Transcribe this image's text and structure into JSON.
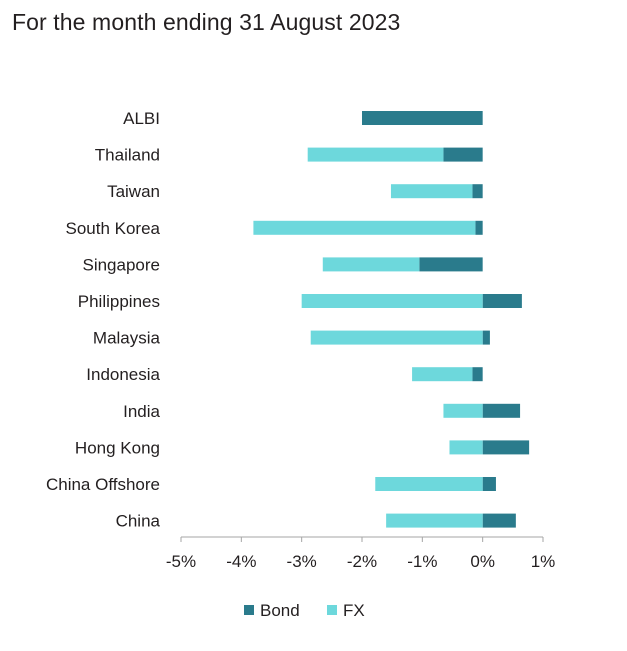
{
  "title": "For the month ending 31 August 2023",
  "chart_data": {
    "type": "bar",
    "orientation": "horizontal",
    "stacked": "diverging",
    "categories": [
      "ALBI",
      "Thailand",
      "Taiwan",
      "South Korea",
      "Singapore",
      "Philippines",
      "Malaysia",
      "Indonesia",
      "India",
      "Hong Kong",
      "China Offshore",
      "China"
    ],
    "series": [
      {
        "name": "Bond",
        "color": "#2a7b8c",
        "values": [
          -2.0,
          -0.65,
          -0.17,
          -0.12,
          -1.05,
          0.65,
          0.12,
          -0.17,
          0.62,
          0.77,
          0.22,
          0.55
        ]
      },
      {
        "name": "FX",
        "color": "#6dd8dc",
        "values": [
          0.0,
          -2.25,
          -1.35,
          -3.68,
          -1.6,
          -3.0,
          -2.85,
          -1.0,
          -0.65,
          -0.55,
          -1.78,
          -1.6
        ]
      }
    ],
    "xlim": [
      -5,
      1
    ],
    "xticks": [
      "-5%",
      "-4%",
      "-3%",
      "-2%",
      "-1%",
      "0%",
      "1%"
    ],
    "xtick_values": [
      -5,
      -4,
      -3,
      -2,
      -1,
      0,
      1
    ],
    "grid": false,
    "legend_position": "bottom-center"
  }
}
